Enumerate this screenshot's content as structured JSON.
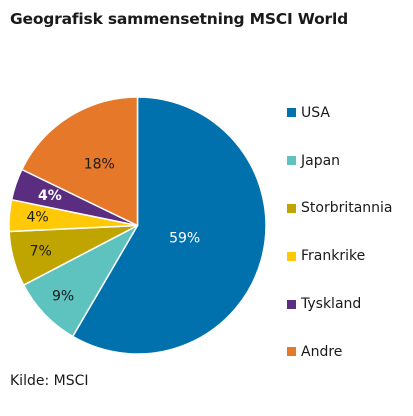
{
  "title": "Geografisk sammensetning MSCI World",
  "source": "Kilde: MSCI",
  "chart_data": {
    "type": "pie",
    "title": "Geografisk sammensetning MSCI World",
    "legend_position": "right",
    "start_angle_deg": 0,
    "direction": "clockwise",
    "slices": [
      {
        "label": "USA",
        "value": 59,
        "display": "59%",
        "color": "#0071ad",
        "label_color": "#ffffff",
        "label_weight": "normal"
      },
      {
        "label": "Japan",
        "value": 9,
        "display": "9%",
        "color": "#5ec2bf",
        "label_color": "#1a1a1a",
        "label_weight": "normal"
      },
      {
        "label": "Storbritannia",
        "value": 7,
        "display": "7%",
        "color": "#c0a400",
        "label_color": "#1a1a1a",
        "label_weight": "normal"
      },
      {
        "label": "Frankrike",
        "value": 4,
        "display": "4%",
        "color": "#ffc907",
        "label_color": "#1a1a1a",
        "label_weight": "normal"
      },
      {
        "label": "Tyskland",
        "value": 4,
        "display": "4%",
        "color": "#5a2d81",
        "label_color": "#ffffff",
        "label_weight": "bold"
      },
      {
        "label": "Andre",
        "value": 18,
        "display": "18%",
        "color": "#e6782a",
        "label_color": "#1a1a1a",
        "label_weight": "normal"
      }
    ]
  }
}
